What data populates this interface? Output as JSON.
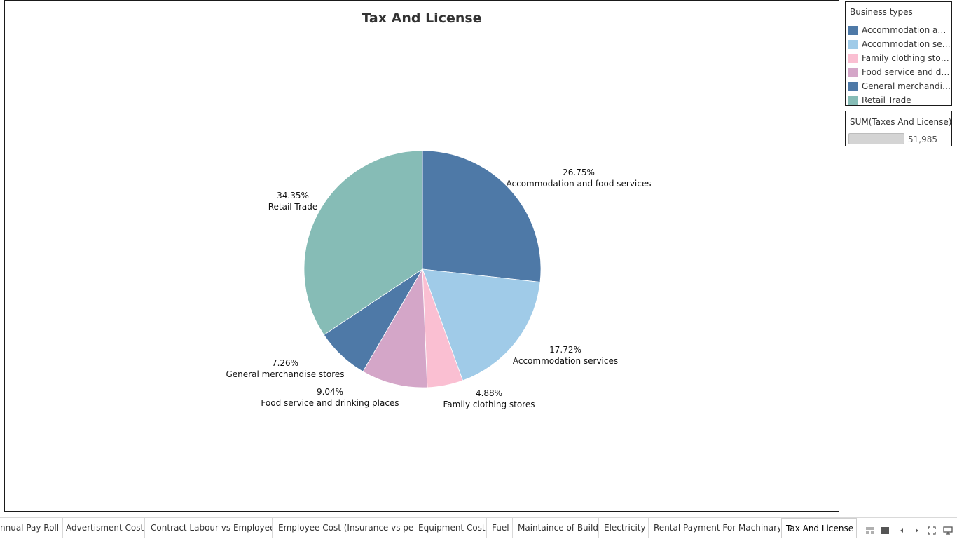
{
  "colors": {
    "Accommodation and food services": "#4e79a7",
    "Accommodation services": "#a0cbe8",
    "Family clothing stores": "#fabfd2",
    "Food service and drinking places": "#d4a6c8",
    "General merchandise stores": "#4e79a7",
    "Retail Trade": "#86bcb6"
  },
  "chart_data": {
    "type": "pie",
    "title": "Tax And License",
    "slices": [
      {
        "label": "Accommodation and food services",
        "value": 26.75,
        "percent_label": "26.75%"
      },
      {
        "label": "Accommodation services",
        "value": 17.72,
        "percent_label": "17.72%"
      },
      {
        "label": "Family clothing stores",
        "value": 4.88,
        "percent_label": "4.88%"
      },
      {
        "label": "Food service and drinking places",
        "value": 9.04,
        "percent_label": "9.04%"
      },
      {
        "label": "General merchandise stores",
        "value": 7.26,
        "percent_label": "7.26%"
      },
      {
        "label": "Retail Trade",
        "value": 34.35,
        "percent_label": "34.35%"
      }
    ],
    "legend_position": "right"
  },
  "legend": {
    "title": "Business types",
    "items": [
      {
        "label": "Accommodation and ..",
        "key": "Accommodation and food services"
      },
      {
        "label": "Accommodation serv..",
        "key": "Accommodation services"
      },
      {
        "label": "Family clothing stores",
        "key": "Family clothing stores"
      },
      {
        "label": "Food service and dri..",
        "key": "Food service and drinking places"
      },
      {
        "label": "General merchandis..",
        "key": "General merchandise stores"
      },
      {
        "label": "Retail Trade",
        "key": "Retail Trade"
      }
    ]
  },
  "size_legend": {
    "title": "SUM(Taxes And License)",
    "value": "51,985"
  },
  "tabs": [
    {
      "label": "nnual Pay Roll"
    },
    {
      "label": "Advertisment Cost"
    },
    {
      "label": "Contract Labour vs Employee"
    },
    {
      "label": "Employee Cost (Insurance vs pe..."
    },
    {
      "label": "Equipment Cost"
    },
    {
      "label": "Fuel"
    },
    {
      "label": "Maintaince of Build"
    },
    {
      "label": "Electricity"
    },
    {
      "label": "Rental Payment For Machinary"
    },
    {
      "label": "Tax And License",
      "active": true
    }
  ],
  "tab_controls": [
    {
      "icon": "show-filmstrip-icon"
    },
    {
      "icon": "show-tabs-icon"
    },
    {
      "icon": "scroll-left-icon"
    },
    {
      "icon": "scroll-right-icon"
    },
    {
      "icon": "fit-fullscreen-icon"
    },
    {
      "icon": "presentation-mode-icon"
    }
  ]
}
